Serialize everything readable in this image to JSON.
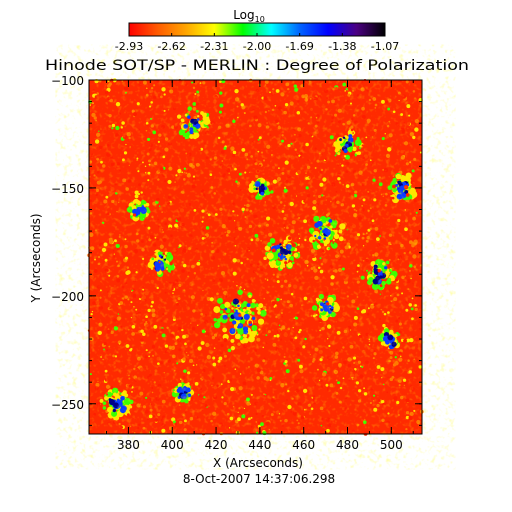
{
  "chart_data": {
    "type": "heatmap",
    "title": "Hinode SOT/SP - MERLIN : Degree of Polarization",
    "colorbar": {
      "label_main": "Log",
      "label_sub": "10",
      "ticks": [
        "-2.93",
        "-2.62",
        "-2.31",
        "-2.00",
        "-1.69",
        "-1.38",
        "-1.07"
      ],
      "range": [
        -2.93,
        -1.07
      ],
      "colors": [
        "#ff0000",
        "#ff5a00",
        "#ffa500",
        "#ffff00",
        "#00ff00",
        "#00ffff",
        "#0064ff",
        "#0000ff",
        "#4b0082",
        "#000000"
      ]
    },
    "xlabel": "X (Arcseconds)",
    "ylabel": "Y (Arcseconds)",
    "xlim": [
      362,
      514
    ],
    "ylim": [
      -264,
      -100
    ],
    "xticks": [
      "380",
      "400",
      "420",
      "440",
      "460",
      "480",
      "500"
    ],
    "yticks": [
      "-100",
      "-150",
      "-200",
      "-250"
    ],
    "timestamp": "8-Oct-2007 14:37:06.298",
    "palette": {
      "red": "#ff1e00",
      "orange": "#ff7a00",
      "yellow": "#ffe600",
      "green": "#3cff00",
      "blue": "#0a3cff",
      "navy": "#000088"
    }
  }
}
